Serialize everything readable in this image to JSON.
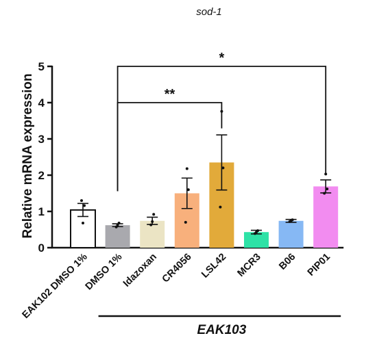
{
  "chart_data": {
    "type": "bar",
    "title": "sod-1",
    "xlabel": "",
    "ylabel": "Relative mRNA expression",
    "ylim": [
      0,
      5
    ],
    "yticks": [
      "0",
      "1",
      "2",
      "3",
      "4",
      "5"
    ],
    "categories": [
      "EAK102 DMSO 1%",
      "DMSO 1%",
      "Idazoxan",
      "CR4056",
      "LSL42",
      "MCR3",
      "B06",
      "PIP01"
    ],
    "values": [
      1.04,
      0.62,
      0.74,
      1.5,
      2.35,
      0.43,
      0.74,
      1.69
    ],
    "error": [
      0.18,
      0.04,
      0.1,
      0.42,
      0.76,
      0.05,
      0.04,
      0.18
    ],
    "points": [
      [
        1.3,
        0.68,
        1.16
      ],
      [
        0.57,
        0.63,
        0.68
      ],
      [
        0.63,
        0.72,
        0.92
      ],
      [
        0.7,
        2.18,
        1.6
      ],
      [
        1.12,
        3.76,
        2.2
      ],
      [
        0.39,
        0.43,
        0.47
      ],
      [
        0.72,
        0.74,
        0.77
      ],
      [
        1.5,
        2.03,
        1.62
      ]
    ],
    "colors": [
      "#ffffff",
      "#a9a9ae",
      "#ebe4c4",
      "#f8b07c",
      "#e2aa3a",
      "#2ee2a6",
      "#86b8f4",
      "#f28cf0"
    ],
    "group_label": "EAK103",
    "group_members": [
      "DMSO 1%",
      "Idazoxan",
      "CR4056",
      "LSL42",
      "MCR3",
      "B06",
      "PIP01"
    ],
    "significance": [
      {
        "from": "DMSO 1%",
        "to": "LSL42",
        "label": "**"
      },
      {
        "from": "DMSO 1%",
        "to": "PIP01",
        "label": "*"
      }
    ],
    "grid": false,
    "legend": "none"
  }
}
